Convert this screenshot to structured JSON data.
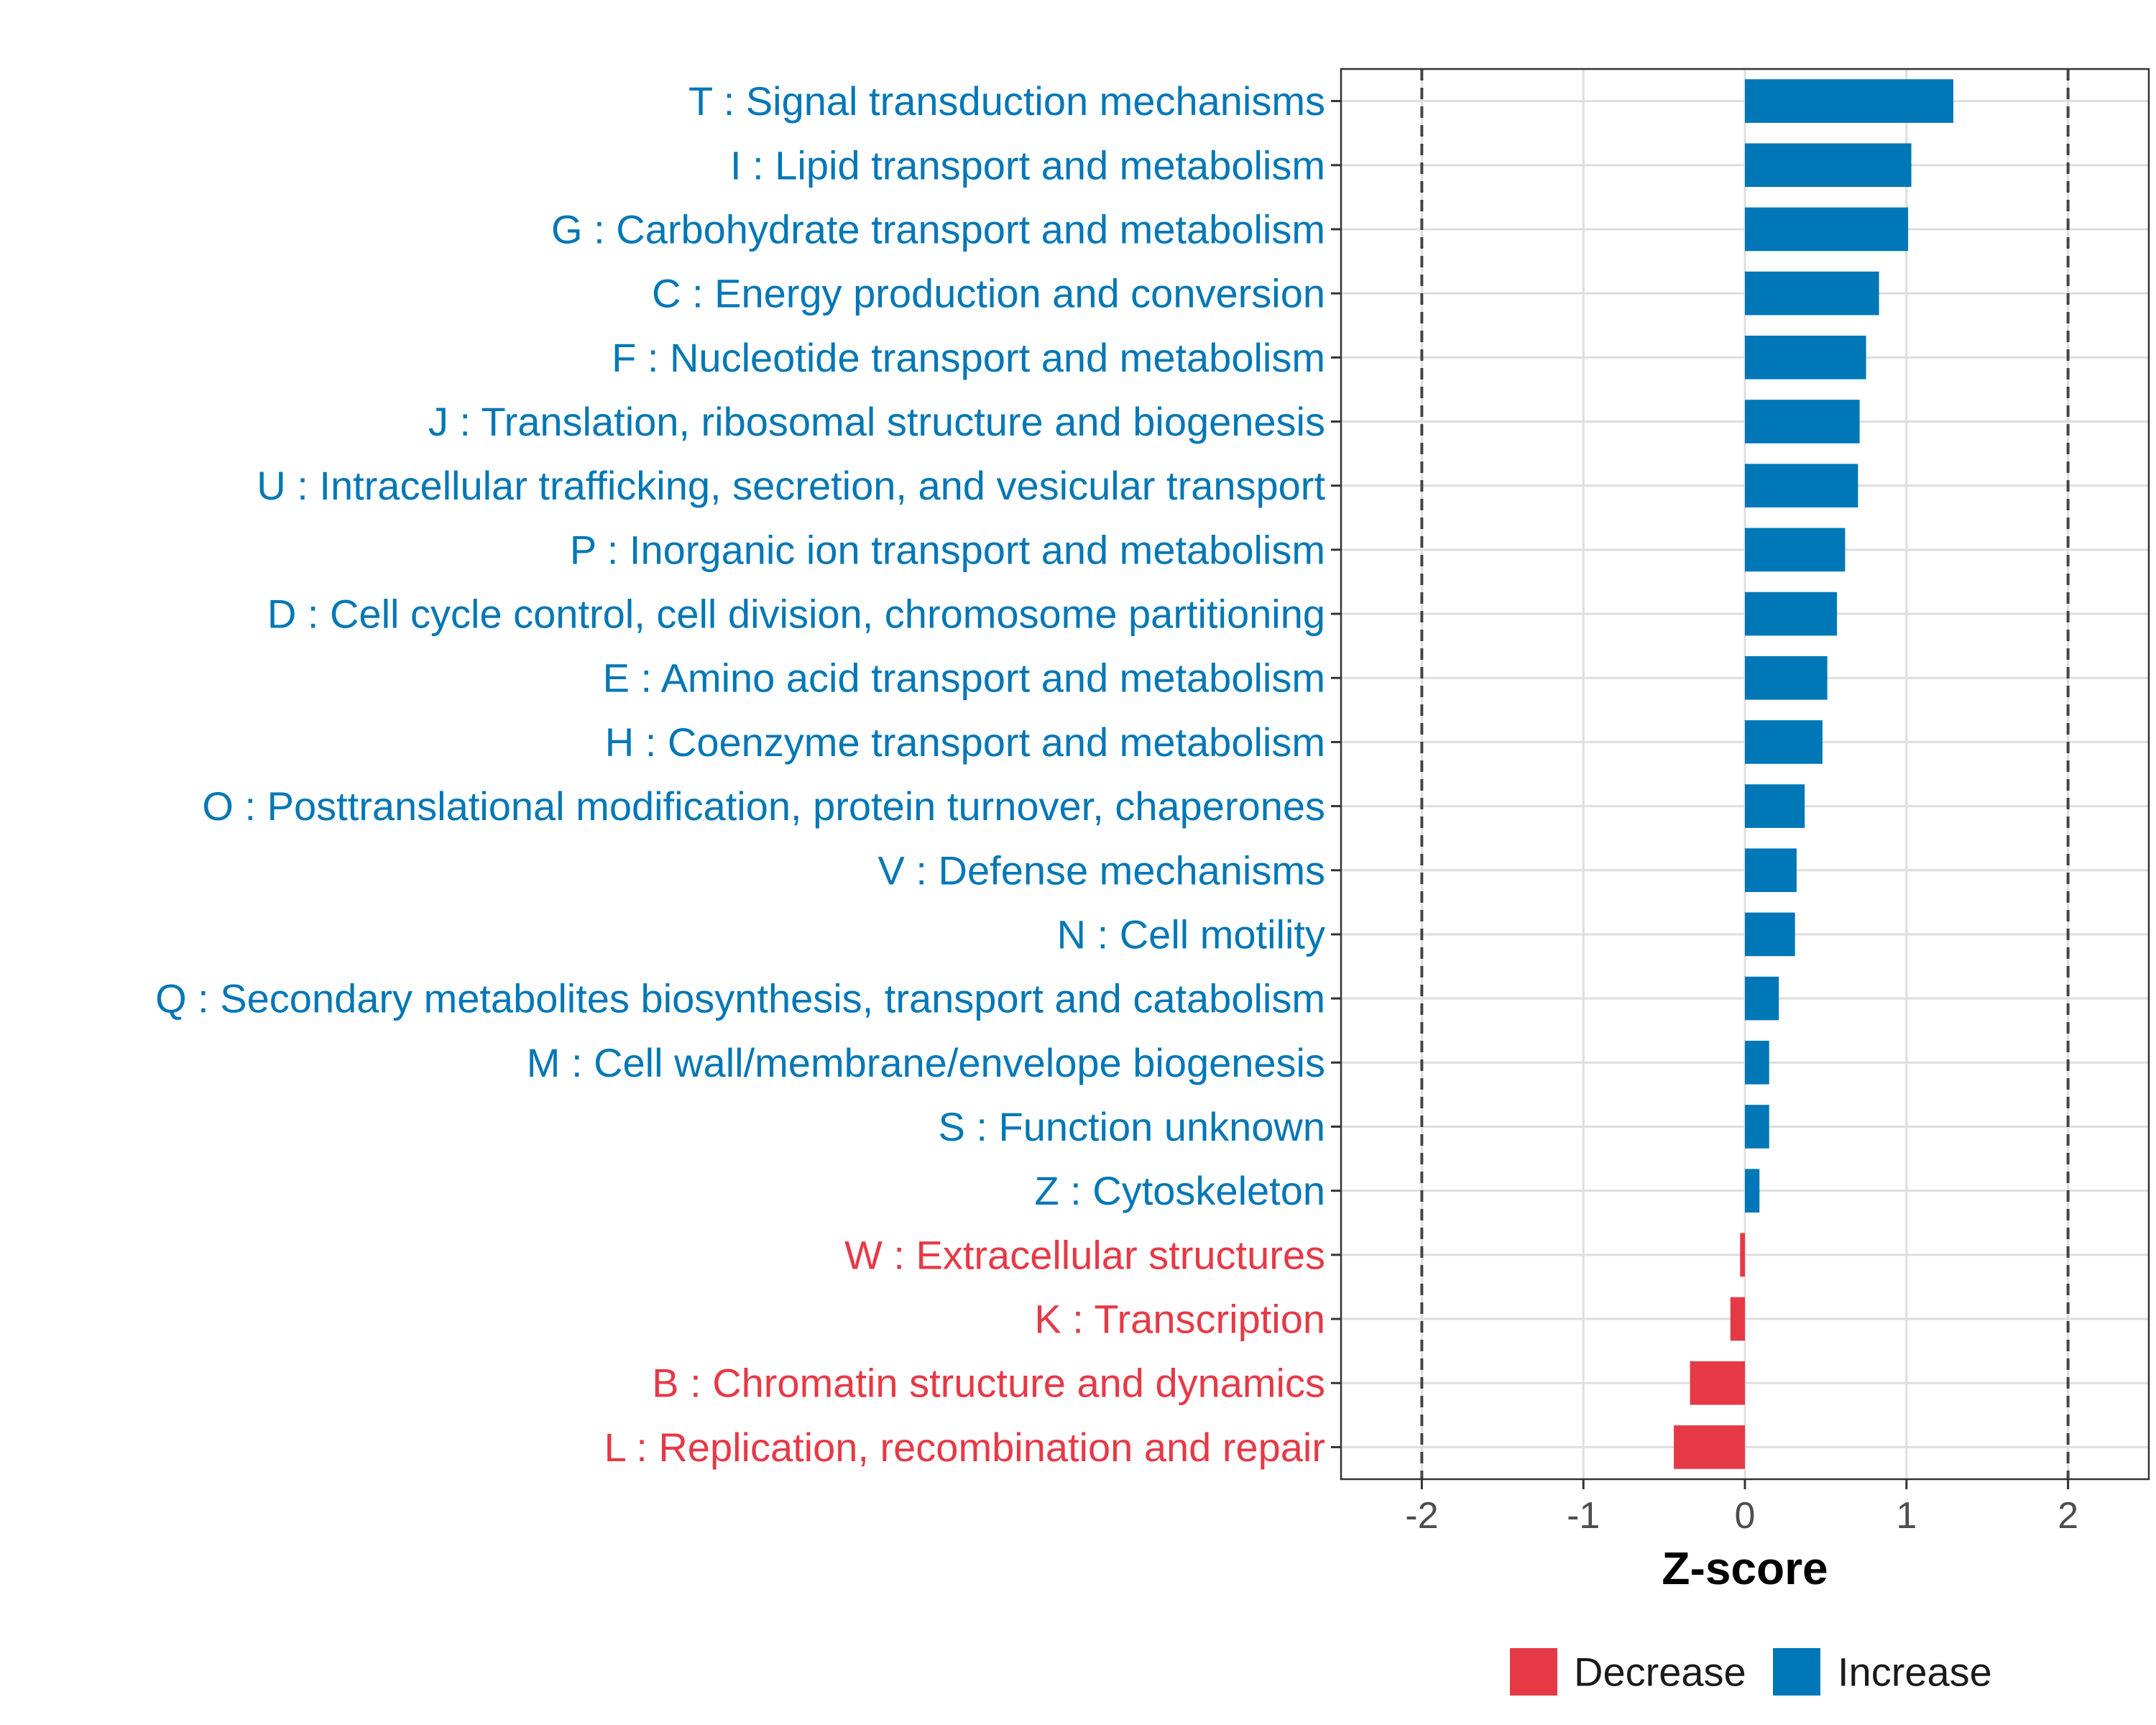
{
  "chart_data": {
    "type": "bar",
    "orientation": "horizontal",
    "title": "",
    "xlabel": "Z-score",
    "ylabel": "",
    "xlim": [
      -2.5,
      2.5
    ],
    "x_ticks": [
      -2,
      -1,
      0,
      1,
      2
    ],
    "x_tick_labels": [
      "-2",
      "-1",
      "0",
      "1",
      "2"
    ],
    "reference_lines": [
      -2,
      2
    ],
    "grid": true,
    "colors": {
      "Decrease": "#E63946",
      "Increase": "#0077B6"
    },
    "categories": [
      "T : Signal transduction mechanisms",
      "I : Lipid transport and metabolism",
      "G : Carbohydrate transport and metabolism",
      "C : Energy production and conversion",
      "F : Nucleotide transport and metabolism",
      "J : Translation, ribosomal structure and biogenesis",
      "U : Intracellular trafficking, secretion, and vesicular transport",
      "P : Inorganic ion transport and metabolism",
      "D : Cell cycle control, cell division, chromosome partitioning",
      "E : Amino acid transport and metabolism",
      "H : Coenzyme transport and metabolism",
      "O : Posttranslational modification, protein turnover, chaperones",
      "V : Defense mechanisms",
      "N : Cell motility",
      "Q : Secondary metabolites biosynthesis, transport and catabolism",
      "M : Cell wall/membrane/envelope biogenesis",
      "S : Function unknown",
      "Z : Cytoskeleton",
      "W : Extracellular structures",
      "K : Transcription",
      "B : Chromatin structure and dynamics",
      "L : Replication, recombination and repair"
    ],
    "values": [
      1.29,
      1.03,
      1.01,
      0.83,
      0.75,
      0.71,
      0.7,
      0.62,
      0.57,
      0.51,
      0.48,
      0.37,
      0.32,
      0.31,
      0.21,
      0.15,
      0.15,
      0.09,
      -0.03,
      -0.09,
      -0.34,
      -0.44
    ],
    "groups": [
      "Increase",
      "Increase",
      "Increase",
      "Increase",
      "Increase",
      "Increase",
      "Increase",
      "Increase",
      "Increase",
      "Increase",
      "Increase",
      "Increase",
      "Increase",
      "Increase",
      "Increase",
      "Increase",
      "Increase",
      "Increase",
      "Decrease",
      "Decrease",
      "Decrease",
      "Decrease"
    ],
    "legend": {
      "position": "bottom",
      "entries": [
        "Decrease",
        "Increase"
      ]
    }
  }
}
